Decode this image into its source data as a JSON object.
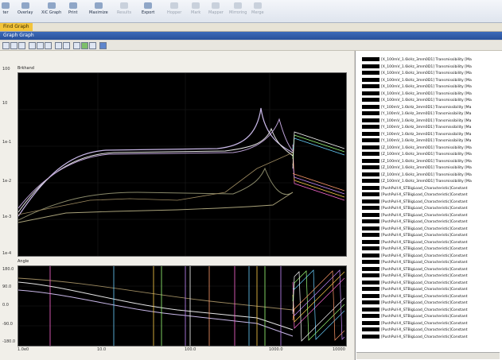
{
  "ribbon": {
    "buttons": [
      {
        "label": "ter",
        "enabled": true
      },
      {
        "label": "Overlay",
        "enabled": true
      },
      {
        "label": "XiC Graph",
        "enabled": true
      },
      {
        "label": "Print",
        "enabled": true
      },
      {
        "label": "Maximize",
        "enabled": true
      },
      {
        "label": "Results",
        "enabled": false
      },
      {
        "label": "Export",
        "enabled": true
      },
      {
        "label": "Hopper",
        "enabled": false
      },
      {
        "label": "Mark",
        "enabled": false
      },
      {
        "label": "Mapper",
        "enabled": false
      },
      {
        "label": "Mirroring",
        "enabled": false
      },
      {
        "label": "Merge",
        "enabled": false
      }
    ]
  },
  "tab": {
    "label": "Find Graph"
  },
  "window": {
    "title": "Graph Graph"
  },
  "panels": {
    "top_label": "Brkhand",
    "bottom_label": "Angle"
  },
  "yaxis_top": [
    "100",
    "10",
    "1e-1",
    "1e-2",
    "1e-3",
    "1e-4"
  ],
  "yaxis_bottom": [
    "180.0",
    "90.0",
    "0.0",
    "-90.0",
    "-180.0"
  ],
  "xaxis": [
    "1.0e0",
    "10.0",
    "100.0",
    "1000.0",
    "10000"
  ],
  "colors": {
    "accent": "#f3c43a",
    "title": "#2f5ca8",
    "plot_bg": "#000000"
  },
  "legend": [
    "[X_100mV_1.6kHz_3mm0D1] Transmissibility [Ma",
    "[X_100mV_1.6kHz_3mm0D1] Transmissibility [Ma",
    "[X_100mV_1.6kHz_3mm0D1] Transmissibility [Ma",
    "[X_100mV_1.6kHz_3mm0D1] Transmissibility [Ma",
    "[X_100mV_1.6kHz_3mm0D1] Transmissibility [Ma",
    "[X_100mV_1.6kHz_3mm0D1] Transmissibility [Ma",
    "[X_100mV_1.6kHz_3mm0D1] Transmissibility [Ma",
    "[Y_100mV_1.6kHz_3mm0D1] Transmissibility [Ma",
    "[Y_100mV_1.6kHz_3mm0D1] Transmissibility [Ma",
    "[Y_100mV_1.6kHz_3mm0D1] Transmissibility [Ma",
    "[Y_100mV_1.6kHz_3mm0D1] Transmissibility [Ma",
    "[Y_100mV_1.6kHz_3mm0D1] Transmissibility [Ma",
    "[Y_100mV_1.6kHz_3mm0D1] Transmissibility [Ma",
    "[Z_100mV_1.6kHz_3mm0D1] Transmissibility [Ma",
    "[Z_100mV_1.6kHz_3mm0D1] Transmissibility [Ma",
    "[Z_100mV_1.6kHz_3mm0D1] Transmissibility [Ma",
    "[Z_100mV_1.6kHz_3mm0D1] Transmissibility [Ma",
    "[Z_100mV_1.6kHz_3mm0D1] Transmissibility [Ma",
    "[Z_100mV_1.6kHz_3mm0D1] Transmissibility [Ma",
    "[PushPull-X_STBigLoad_Characteristic]Constant",
    "[PushPull-X_STBigLoad_Characteristic]Constant",
    "[PushPull-X_STBigLoad_Characteristic]Constant",
    "[PushPull-X_STBigLoad_Characteristic]Constant",
    "[PushPull-X_STBigLoad_Characteristic]Constant",
    "[PushPull-X_STBigLoad_Characteristic]Constant",
    "[PushPull-X_STBigLoad_Characteristic]Constant",
    "[PushPull-X_STBigLoad_Characteristic]Constant",
    "[PushPull-X_STBigLoad_Characteristic]Constant",
    "[PushPull-X_STBigLoad_Characteristic]Constant",
    "[PushPull-X_STBigLoad_Characteristic]Constant",
    "[PushPull-X_STBigLoad_Characteristic]Constant",
    "[PushPull-X_STBigLoad_Characteristic]Constant",
    "[PushPull-X_STBigLoad_Characteristic]Constant",
    "[PushPull-X_STBigLoad_Characteristic]Constant",
    "[PushPull-X_STBigLoad_Characteristic]Constant",
    "[PushPull-X_STBigLoad_Characteristic]Constant",
    "[PushPull-X_STBigLoad_Characteristic]Constant",
    "[PushPull-X_STBigLoad_Characteristic]Constant",
    "[PushPull-X_STBigLoad_Characteristic]Constant",
    "[PushPull-X_STBigLoad_Characteristic]Constant",
    "[PushPull-X_STBigLoad_Characteristic]Constant",
    "[PushPull-X_STBigLoad_Characteristic]Constant"
  ]
}
